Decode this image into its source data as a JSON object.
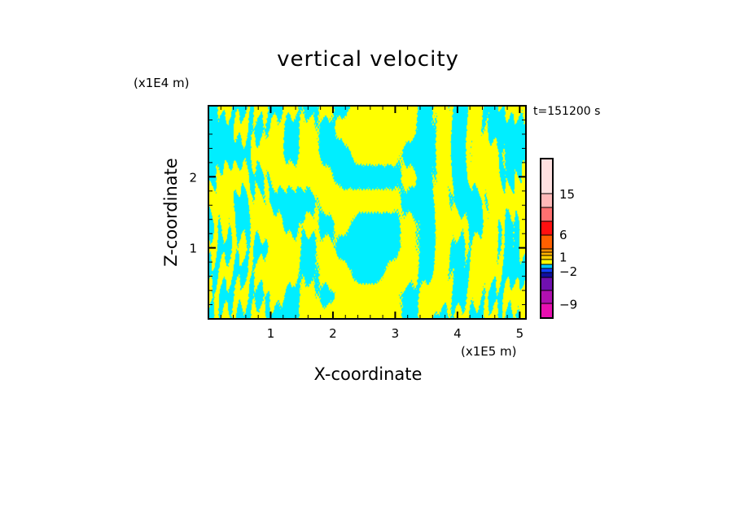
{
  "chart_data": {
    "type": "heatmap",
    "title": "vertical velocity",
    "xlabel": "X-coordinate",
    "ylabel": "Z-coordinate",
    "x_unit": "(x1E5 m)",
    "y_unit": "(x1E4 m)",
    "time_label": "t=151200 s",
    "xlim": [
      0,
      5.1
    ],
    "ylim": [
      0,
      3.0
    ],
    "x_ticks": [
      {
        "v": 1,
        "label": "1"
      },
      {
        "v": 2,
        "label": "2"
      },
      {
        "v": 3,
        "label": "3"
      },
      {
        "v": 4,
        "label": "4"
      },
      {
        "v": 5,
        "label": "5"
      }
    ],
    "y_ticks": [
      {
        "v": 1,
        "label": "1"
      },
      {
        "v": 2,
        "label": "2"
      }
    ],
    "minor_step_x": 0.2,
    "minor_step_y": 0.2,
    "field_colors": {
      "positive": "#ffff00",
      "negative": "#00eeff"
    },
    "field_sign_grid": [
      [
        -1,
        1,
        -1,
        1,
        -1,
        1,
        -1,
        1,
        -1,
        1,
        1,
        1,
        1,
        -1,
        1,
        -1,
        1,
        -1,
        1,
        1
      ],
      [
        -1,
        -1,
        1,
        -1,
        1,
        -1,
        1,
        -1,
        1,
        1,
        1,
        1,
        1,
        -1,
        1,
        -1,
        1,
        -1,
        -1,
        -1
      ],
      [
        -1,
        -1,
        -1,
        1,
        1,
        -1,
        1,
        -1,
        -1,
        1,
        1,
        1,
        -1,
        -1,
        1,
        -1,
        1,
        1,
        -1,
        -1
      ],
      [
        -1,
        1,
        1,
        -1,
        1,
        1,
        1,
        1,
        -1,
        -1,
        -1,
        -1,
        1,
        -1,
        1,
        -1,
        1,
        1,
        -1,
        1
      ],
      [
        1,
        1,
        -1,
        1,
        -1,
        -1,
        -1,
        1,
        1,
        1,
        1,
        1,
        -1,
        -1,
        1,
        -1,
        -1,
        1,
        1,
        1
      ],
      [
        -1,
        1,
        -1,
        1,
        1,
        -1,
        1,
        -1,
        1,
        -1,
        -1,
        -1,
        1,
        -1,
        1,
        1,
        -1,
        1,
        -1,
        1
      ],
      [
        1,
        -1,
        1,
        -1,
        1,
        1,
        -1,
        1,
        -1,
        -1,
        -1,
        -1,
        1,
        -1,
        1,
        -1,
        1,
        1,
        -1,
        1
      ],
      [
        -1,
        1,
        -1,
        1,
        1,
        1,
        -1,
        1,
        1,
        -1,
        -1,
        1,
        1,
        -1,
        1,
        -1,
        1,
        1,
        -1,
        -1
      ],
      [
        1,
        -1,
        1,
        -1,
        1,
        -1,
        1,
        -1,
        1,
        1,
        1,
        1,
        -1,
        1,
        1,
        -1,
        1,
        -1,
        1,
        1
      ],
      [
        -1,
        1,
        -1,
        1,
        -1,
        -1,
        1,
        1,
        1,
        1,
        1,
        1,
        -1,
        1,
        -1,
        1,
        -1,
        1,
        -1,
        1
      ]
    ],
    "colorbar": {
      "bands_bottom_to_top": [
        {
          "color": "#e810b0",
          "weight": 18
        },
        {
          "color": "#b010b0",
          "weight": 16
        },
        {
          "color": "#7010b0",
          "weight": 16
        },
        {
          "color": "#1010a0",
          "weight": 6
        },
        {
          "color": "#1040ff",
          "weight": 5
        },
        {
          "color": "#00c8ff",
          "weight": 5
        },
        {
          "color": "#ffff00",
          "weight": 6
        },
        {
          "color": "#ffd000",
          "weight": 5
        },
        {
          "color": "#ffb000",
          "weight": 4
        },
        {
          "color": "#ff9000",
          "weight": 4
        },
        {
          "color": "#ff6000",
          "weight": 17
        },
        {
          "color": "#ff1010",
          "weight": 17
        },
        {
          "color": "#ff7070",
          "weight": 17
        },
        {
          "color": "#ffb8b8",
          "weight": 17
        },
        {
          "color": "#ffe0e0",
          "weight": 43
        }
      ],
      "labels": [
        {
          "label": "15",
          "pos": 0.78
        },
        {
          "label": "6",
          "pos": 0.525
        },
        {
          "label": "1",
          "pos": 0.385
        },
        {
          "label": "−2",
          "pos": 0.295
        },
        {
          "label": "−9",
          "pos": 0.09
        }
      ]
    }
  }
}
